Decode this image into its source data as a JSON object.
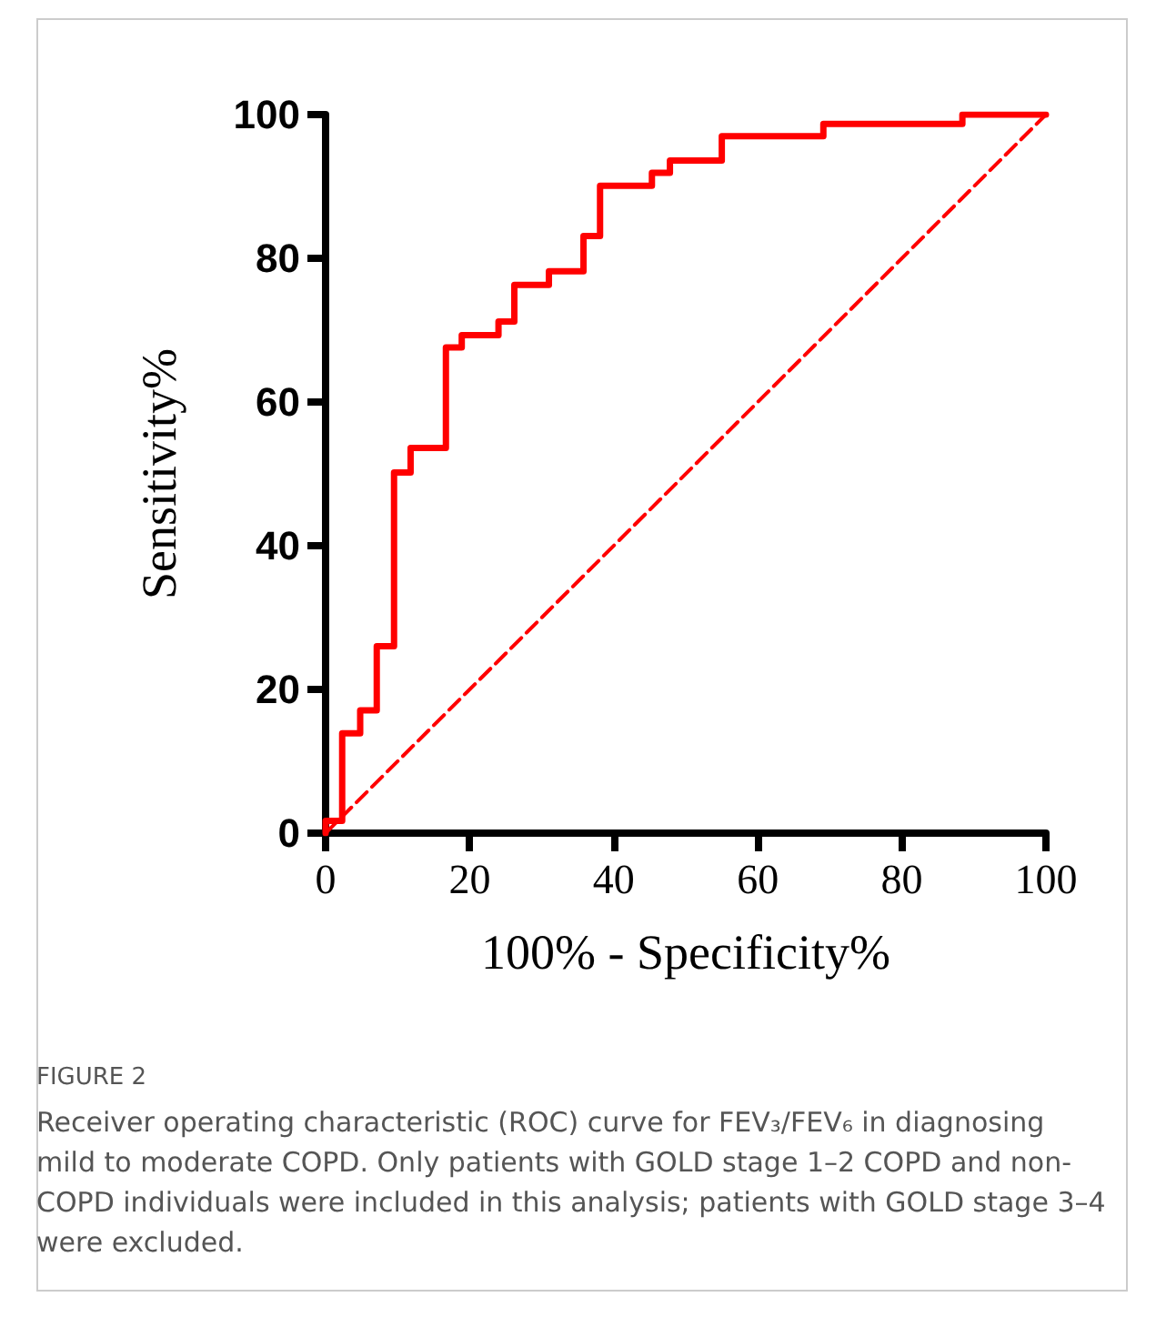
{
  "chart_data": {
    "type": "line",
    "xlabel": "100% - Specificity%",
    "ylabel": "Sensitivity%",
    "series": [
      {
        "color": "#ff0000",
        "x": [
          0,
          0,
          2.3,
          2.3,
          4.8,
          4.8,
          7.1,
          7.1,
          9.5,
          9.5,
          11.8,
          11.8,
          16.7,
          16.7,
          18.9,
          18.9,
          24.0,
          24.0,
          26.2,
          26.2,
          31.0,
          31.0,
          35.8,
          35.8,
          38.1,
          38.1,
          45.3,
          45.3,
          47.8,
          47.8,
          55.0,
          55.0,
          69.1,
          69.1,
          88.4,
          88.4,
          100
        ],
        "values": [
          0,
          1.7,
          1.7,
          13.9,
          13.9,
          17.1,
          17.1,
          26.0,
          26.0,
          50.2,
          50.2,
          53.6,
          53.6,
          67.6,
          67.6,
          69.3,
          69.3,
          71.2,
          71.2,
          76.3,
          76.3,
          78.2,
          78.2,
          83.1,
          83.1,
          90.1,
          90.1,
          91.9,
          91.9,
          93.6,
          93.6,
          97.0,
          97.0,
          98.7,
          98.7,
          100,
          100
        ],
        "line_style": "solid"
      },
      {
        "color": "#ff0000",
        "x": [
          0,
          100
        ],
        "values": [
          0,
          100
        ],
        "line_style": "dashed"
      }
    ],
    "xlim": [
      0,
      100
    ],
    "xticks": [
      0,
      20,
      40,
      60,
      80,
      100
    ],
    "ylim": [
      0,
      100
    ],
    "yticks": [
      0,
      20,
      40,
      60,
      80,
      100
    ],
    "grid": false,
    "marker": "none",
    "annotations": [
      "FIGURE 2",
      "Receiver operating characteristic (ROC) curve for FEV₃/FEV₆ in diagnosing mild to moderate COPD. Only patients with GOLD stage 1–2 COPD and non-COPD individuals were included in this analysis; patients with GOLD stage 3–4 were excluded."
    ]
  }
}
